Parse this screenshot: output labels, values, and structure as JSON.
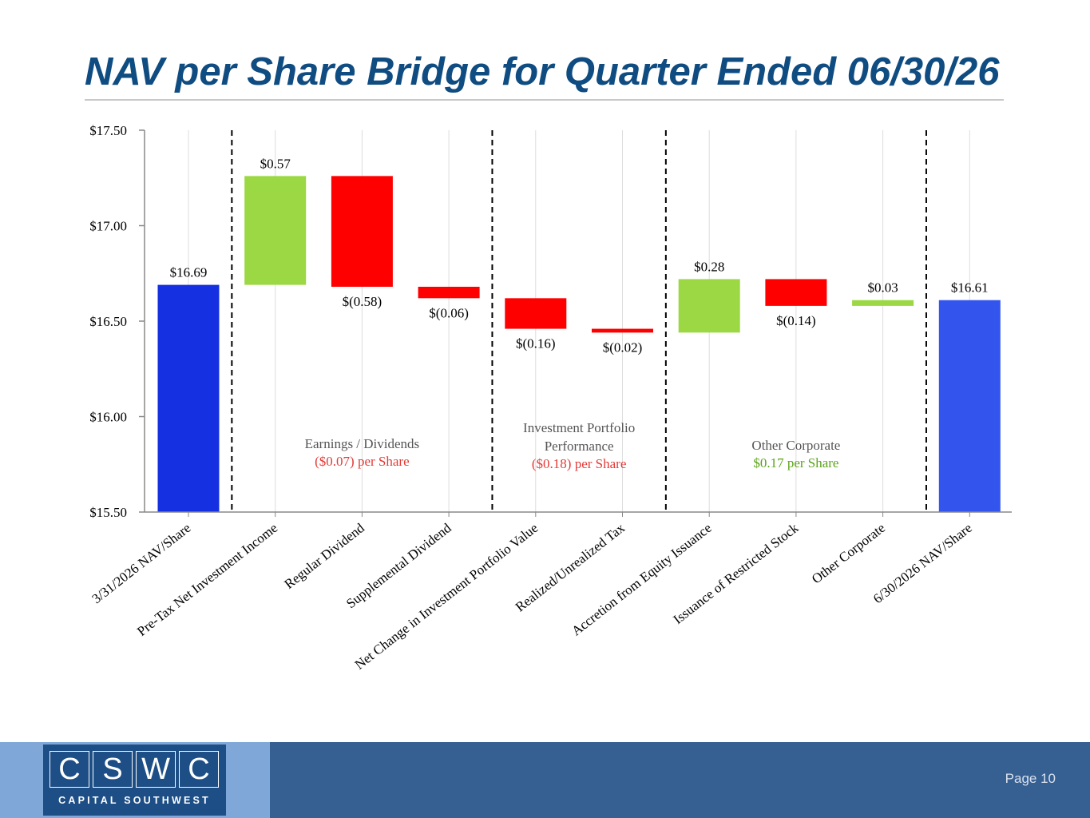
{
  "title": "NAV per Share Bridge for Quarter Ended 06/30/26",
  "chart_data": {
    "type": "waterfall",
    "ylim": [
      15.5,
      17.5
    ],
    "yticks": [
      15.5,
      16.0,
      16.5,
      17.0,
      17.5
    ],
    "ytick_labels": [
      "$15.50",
      "$16.00",
      "$16.50",
      "$17.00",
      "$17.50"
    ],
    "grid": "vertical",
    "steps": [
      {
        "category": "3/31/2026 NAV/Share",
        "kind": "total",
        "start": 15.5,
        "end": 16.69,
        "label": "$16.69",
        "label_pos": "above"
      },
      {
        "category": "Pre-Tax Net Investment Income",
        "kind": "increase",
        "start": 16.69,
        "end": 17.26,
        "label": "$0.57",
        "label_pos": "above"
      },
      {
        "category": "Regular Dividend",
        "kind": "decrease",
        "start": 17.26,
        "end": 16.68,
        "label": "$(0.58)",
        "label_pos": "below"
      },
      {
        "category": "Supplemental Dividend",
        "kind": "decrease",
        "start": 16.68,
        "end": 16.62,
        "label": "$(0.06)",
        "label_pos": "below"
      },
      {
        "category": "Net Change in Investment Portfolio Value",
        "kind": "decrease",
        "start": 16.62,
        "end": 16.46,
        "label": "$(0.16)",
        "label_pos": "below"
      },
      {
        "category": "Realized/Unrealized Tax",
        "kind": "decrease",
        "start": 16.46,
        "end": 16.44,
        "label": "$(0.02)",
        "label_pos": "below"
      },
      {
        "category": "Accretion from Equity Issuance",
        "kind": "increase",
        "start": 16.44,
        "end": 16.72,
        "label": "$0.28",
        "label_pos": "above"
      },
      {
        "category": "Issuance of Restricted Stock",
        "kind": "decrease",
        "start": 16.72,
        "end": 16.58,
        "label": "$(0.14)",
        "label_pos": "below"
      },
      {
        "category": "Other Corporate",
        "kind": "increase",
        "start": 16.58,
        "end": 16.61,
        "label": "$0.03",
        "label_pos": "above"
      },
      {
        "category": "6/30/2026 NAV/Share",
        "kind": "total",
        "start": 15.5,
        "end": 16.61,
        "label": "$16.61",
        "label_pos": "above"
      }
    ],
    "group_dividers_after_index": [
      0,
      3,
      5,
      8
    ],
    "groups": [
      {
        "lines": [
          "Earnings / Dividends"
        ],
        "value": "($0.07) per Share",
        "value_color": "#e53935",
        "first_index": 1,
        "last_index": 3
      },
      {
        "lines": [
          "Investment Portfolio",
          "Performance"
        ],
        "value": "($0.18) per Share",
        "value_color": "#e53935",
        "first_index": 4,
        "last_index": 5
      },
      {
        "lines": [
          "Other Corporate"
        ],
        "value": "$0.17 per Share",
        "value_color": "#5aa317",
        "first_index": 6,
        "last_index": 8
      }
    ],
    "colors": {
      "total_start": "#1430e0",
      "total_end": "#3355ee",
      "increase": "#9bd843",
      "decrease": "#ff0000",
      "group_label": "#555555",
      "axis": "#888888",
      "grid": "#dddddd"
    }
  },
  "footer": {
    "logo_letters": [
      "C",
      "S",
      "W",
      "C"
    ],
    "logo_subtitle": "CAPITAL SOUTHWEST",
    "page_label": "Page 10"
  }
}
